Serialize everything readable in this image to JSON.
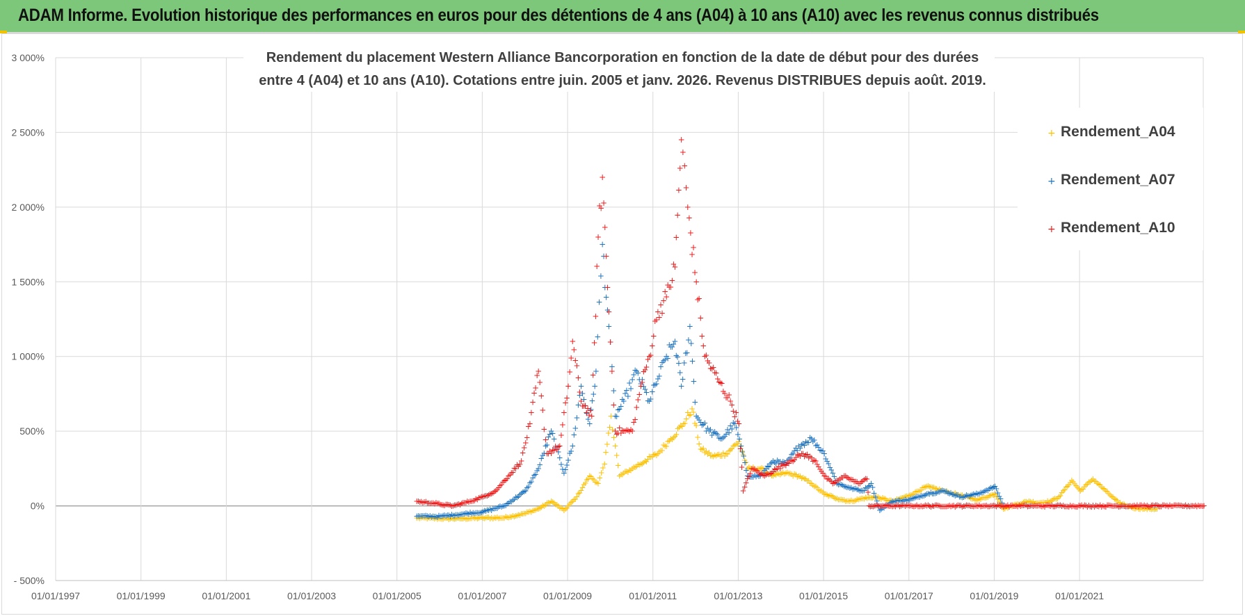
{
  "banner": {
    "title": "ADAM Informe. Evolution historique des performances en euros pour des détentions de 4 ans (A04) à 10 ans (A10) avec les revenus connus distribués",
    "background": "#7dc77a",
    "accent": "#f2c200"
  },
  "chart_data": {
    "type": "scatter",
    "title_lines": [
      "Rendement du placement Western Alliance Bancorporation en fonction de la date de début pour des durées",
      "entre 4 (A04) et 10 ans (A10).  Cotations entre juin. 2005 et janv. 2026. Revenus DISTRIBUES depuis août. 2019."
    ],
    "xlabel": "",
    "ylabel": "",
    "xlim": [
      1997.0,
      2023.9
    ],
    "ylim": [
      -500,
      3000
    ],
    "x_ticks": [
      1997,
      1999,
      2001,
      2003,
      2005,
      2007,
      2009,
      2011,
      2013,
      2015,
      2017,
      2019,
      2021
    ],
    "x_tick_labels": [
      "01/01/1997",
      "01/01/1999",
      "01/01/2001",
      "01/01/2003",
      "01/01/2005",
      "01/01/2007",
      "01/01/2009",
      "01/01/2011",
      "01/01/2013",
      "01/01/2015",
      "01/01/2017",
      "01/01/2019",
      "01/01/2021"
    ],
    "y_ticks": [
      -500,
      0,
      500,
      1000,
      1500,
      2000,
      2500,
      3000
    ],
    "y_tick_labels": [
      "- 500%",
      "0%",
      "500%",
      "1 000%",
      "1 500%",
      "2 000%",
      "2 500%",
      "3 000%"
    ],
    "grid": true,
    "legend_position": "top-right",
    "marker": "+",
    "series": [
      {
        "name": "Rendement_A04",
        "color": "#ffc000",
        "x": [
          2005.45,
          2006.0,
          2006.5,
          2007.0,
          2007.5,
          2008.0,
          2008.3,
          2008.6,
          2008.9,
          2009.2,
          2009.5,
          2009.7,
          2009.85,
          2010.0,
          2010.2,
          2010.5,
          2010.8,
          2011.1,
          2011.4,
          2011.7,
          2011.9,
          2012.1,
          2012.4,
          2012.7,
          2013.0,
          2013.2,
          2013.5,
          2013.8,
          2014.1,
          2014.4,
          2014.7,
          2015.0,
          2015.3,
          2015.6,
          2015.9,
          2016.2,
          2016.6,
          2017.0,
          2017.4,
          2017.8,
          2018.2,
          2018.6,
          2019.0,
          2019.2,
          2019.5,
          2019.8,
          2020.0,
          2020.3,
          2020.5,
          2020.8,
          2021.0,
          2021.3,
          2021.6,
          2021.9,
          2022.2,
          2022.5,
          2022.8
        ],
        "y": [
          -80,
          -85,
          -85,
          -80,
          -80,
          -50,
          -20,
          30,
          -30,
          60,
          200,
          150,
          280,
          600,
          200,
          250,
          300,
          350,
          450,
          550,
          650,
          380,
          330,
          350,
          430,
          250,
          250,
          200,
          220,
          200,
          150,
          80,
          50,
          30,
          50,
          60,
          30,
          70,
          130,
          100,
          70,
          40,
          80,
          -20,
          10,
          30,
          20,
          30,
          60,
          170,
          100,
          180,
          100,
          20,
          -10,
          -20,
          -20
        ]
      },
      {
        "name": "Rendement_A07",
        "color": "#1f74c1",
        "x": [
          2005.45,
          2006.0,
          2006.5,
          2007.0,
          2007.5,
          2008.0,
          2008.3,
          2008.6,
          2008.9,
          2009.1,
          2009.3,
          2009.5,
          2009.65,
          2009.8,
          2009.95,
          2010.1,
          2010.3,
          2010.6,
          2010.9,
          2011.1,
          2011.3,
          2011.5,
          2011.65,
          2011.85,
          2012.0,
          2012.3,
          2012.6,
          2012.9,
          2013.05,
          2013.2,
          2013.5,
          2013.8,
          2014.1,
          2014.4,
          2014.7,
          2015.0,
          2015.3,
          2015.6,
          2015.9,
          2016.1,
          2016.3,
          2016.6,
          2017.0,
          2017.4,
          2017.8,
          2018.2,
          2018.6,
          2019.0,
          2019.2
        ],
        "y": [
          -70,
          -70,
          -55,
          -40,
          0,
          100,
          250,
          500,
          220,
          400,
          800,
          550,
          900,
          1750,
          1200,
          600,
          700,
          900,
          700,
          850,
          1000,
          1100,
          800,
          1200,
          600,
          500,
          450,
          550,
          400,
          200,
          200,
          300,
          280,
          400,
          450,
          350,
          150,
          120,
          100,
          150,
          -30,
          30,
          40,
          80,
          100,
          60,
          80,
          130,
          0
        ]
      },
      {
        "name": "Rendement_A10",
        "color": "#ef1b1b",
        "x": [
          2005.45,
          2005.8,
          2006.0,
          2006.3,
          2006.7,
          2007.0,
          2007.3,
          2007.6,
          2007.9,
          2008.1,
          2008.3,
          2008.5,
          2008.8,
          2009.0,
          2009.1,
          2009.3,
          2009.55,
          2009.7,
          2009.8,
          2009.95,
          2010.1,
          2010.3,
          2010.5,
          2010.7,
          2010.9,
          2011.1,
          2011.3,
          2011.5,
          2011.65,
          2011.8,
          2012.0,
          2012.2,
          2012.5,
          2012.8,
          2013.0,
          2013.1,
          2013.3,
          2013.6,
          2013.9,
          2014.2,
          2014.5,
          2014.8,
          2015.0,
          2015.2,
          2015.5,
          2015.8,
          2016.0,
          2016.05,
          2016.5,
          2017.0,
          2018.0,
          2019.0,
          2020.0,
          2021.0,
          2022.0,
          2023.0,
          2023.9
        ],
        "y": [
          30,
          20,
          10,
          0,
          30,
          60,
          100,
          200,
          300,
          550,
          900,
          350,
          400,
          800,
          1100,
          700,
          600,
          1800,
          2200,
          1300,
          500,
          500,
          500,
          800,
          1000,
          1300,
          1400,
          1600,
          2450,
          2000,
          1500,
          1000,
          850,
          700,
          550,
          100,
          250,
          200,
          250,
          300,
          350,
          300,
          200,
          150,
          200,
          150,
          180,
          0,
          0,
          0,
          0,
          0,
          0,
          0,
          0,
          0,
          0
        ]
      }
    ]
  }
}
